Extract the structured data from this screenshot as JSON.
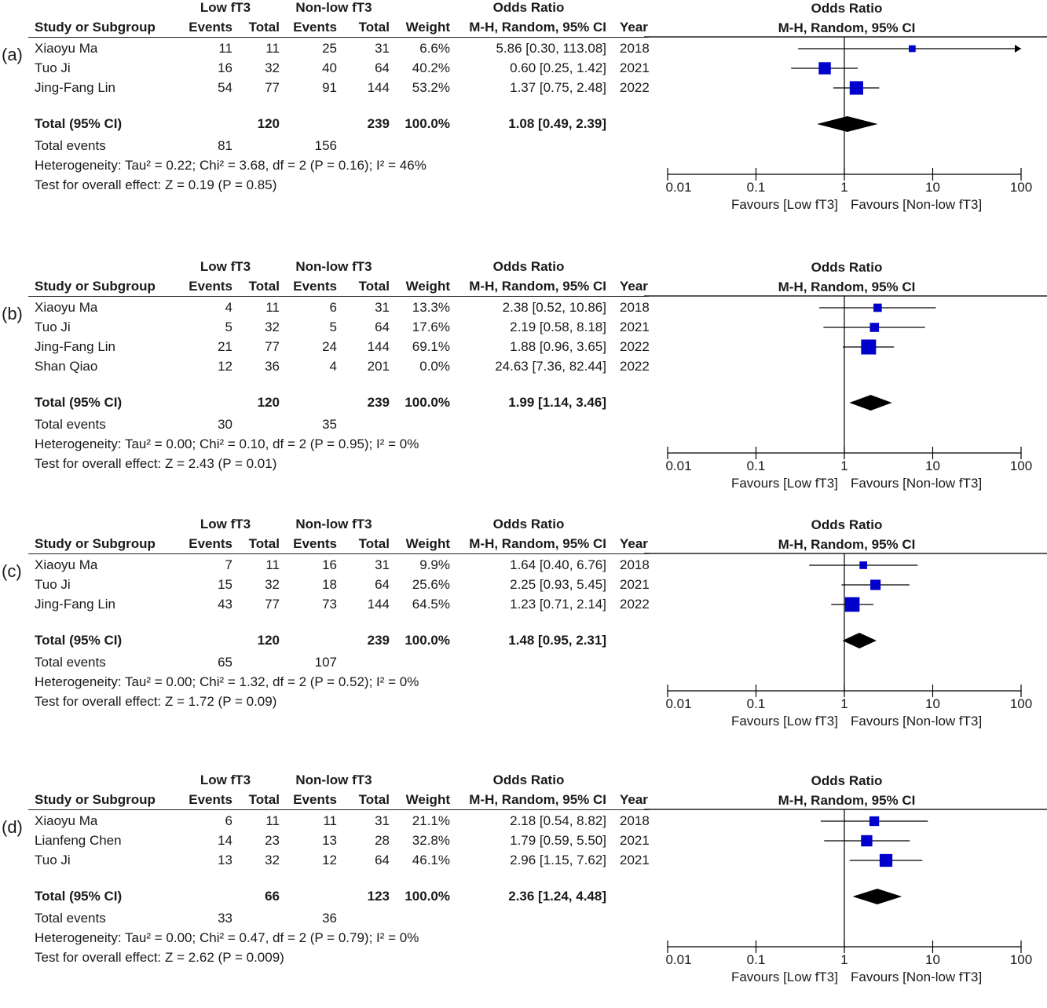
{
  "headers": {
    "study": "Study or Subgroup",
    "group1": "Low fT3",
    "group2": "Non-low fT3",
    "events": "Events",
    "total": "Total",
    "weight": "Weight",
    "or_title": "Odds Ratio",
    "or_sub": "M-H, Random, 95% CI",
    "year": "Year",
    "plot_title": "Odds Ratio",
    "plot_sub": "M-H, Random, 95% CI"
  },
  "axis": {
    "ticks": [
      "0.01",
      "0.1",
      "1",
      "10",
      "100"
    ],
    "favours_left": "Favours [Low fT3]",
    "favours_right": "Favours [Non-low fT3]"
  },
  "colors": {
    "study_marker": "#0000cc",
    "diamond": "#000000",
    "line": "#000000"
  },
  "chart_data": [
    {
      "type": "forest",
      "panel_label": "(a)",
      "scale": "log",
      "xlim": [
        0.01,
        100
      ],
      "studies": [
        {
          "name": "Xiaoyu Ma",
          "e1": "11",
          "t1": "11",
          "e2": "25",
          "t2": "31",
          "weight": "6.6%",
          "ci_text": "5.86 [0.30, 113.08]",
          "year": "2018",
          "or": 5.86,
          "lo": 0.3,
          "hi": 113.08
        },
        {
          "name": "Tuo Ji",
          "e1": "16",
          "t1": "32",
          "e2": "40",
          "t2": "64",
          "weight": "40.2%",
          "ci_text": "0.60 [0.25, 1.42]",
          "year": "2021",
          "or": 0.6,
          "lo": 0.25,
          "hi": 1.42
        },
        {
          "name": "Jing-Fang Lin",
          "e1": "54",
          "t1": "77",
          "e2": "91",
          "t2": "144",
          "weight": "53.2%",
          "ci_text": "1.37 [0.75, 2.48]",
          "year": "2022",
          "or": 1.37,
          "lo": 0.75,
          "hi": 2.48
        }
      ],
      "total": {
        "label": "Total (95% CI)",
        "t1": "120",
        "t2": "239",
        "weight": "100.0%",
        "ci_text": "1.08 [0.49, 2.39]",
        "or": 1.08,
        "lo": 0.49,
        "hi": 2.39
      },
      "events": {
        "label": "Total events",
        "e1": "81",
        "e2": "156"
      },
      "heterogeneity": "Heterogeneity: Tau² = 0.22; Chi² = 3.68, df = 2 (P = 0.16); I² = 46%",
      "overall": "Test for overall effect: Z = 0.19 (P = 0.85)"
    },
    {
      "type": "forest",
      "panel_label": "(b)",
      "scale": "log",
      "xlim": [
        0.01,
        100
      ],
      "studies": [
        {
          "name": "Xiaoyu Ma",
          "e1": "4",
          "t1": "11",
          "e2": "6",
          "t2": "31",
          "weight": "13.3%",
          "ci_text": "2.38 [0.52, 10.86]",
          "year": "2018",
          "or": 2.38,
          "lo": 0.52,
          "hi": 10.86
        },
        {
          "name": "Tuo Ji",
          "e1": "5",
          "t1": "32",
          "e2": "5",
          "t2": "64",
          "weight": "17.6%",
          "ci_text": "2.19 [0.58, 8.18]",
          "year": "2021",
          "or": 2.19,
          "lo": 0.58,
          "hi": 8.18
        },
        {
          "name": "Jing-Fang Lin",
          "e1": "21",
          "t1": "77",
          "e2": "24",
          "t2": "144",
          "weight": "69.1%",
          "ci_text": "1.88 [0.96, 3.65]",
          "year": "2022",
          "or": 1.88,
          "lo": 0.96,
          "hi": 3.65
        },
        {
          "name": "Shan Qiao",
          "e1": "12",
          "t1": "36",
          "e2": "4",
          "t2": "201",
          "weight": "0.0%",
          "ci_text": "24.63 [7.36, 82.44]",
          "year": "2022",
          "or": null,
          "lo": null,
          "hi": null
        }
      ],
      "total": {
        "label": "Total (95% CI)",
        "t1": "120",
        "t2": "239",
        "weight": "100.0%",
        "ci_text": "1.99 [1.14, 3.46]",
        "or": 1.99,
        "lo": 1.14,
        "hi": 3.46
      },
      "events": {
        "label": "Total events",
        "e1": "30",
        "e2": "35"
      },
      "heterogeneity": "Heterogeneity: Tau² = 0.00; Chi² = 0.10, df = 2 (P = 0.95); I² = 0%",
      "overall": "Test for overall effect: Z = 2.43 (P = 0.01)"
    },
    {
      "type": "forest",
      "panel_label": "(c)",
      "scale": "log",
      "xlim": [
        0.01,
        100
      ],
      "studies": [
        {
          "name": "Xiaoyu Ma",
          "e1": "7",
          "t1": "11",
          "e2": "16",
          "t2": "31",
          "weight": "9.9%",
          "ci_text": "1.64 [0.40, 6.76]",
          "year": "2018",
          "or": 1.64,
          "lo": 0.4,
          "hi": 6.76
        },
        {
          "name": "Tuo Ji",
          "e1": "15",
          "t1": "32",
          "e2": "18",
          "t2": "64",
          "weight": "25.6%",
          "ci_text": "2.25 [0.93, 5.45]",
          "year": "2021",
          "or": 2.25,
          "lo": 0.93,
          "hi": 5.45
        },
        {
          "name": "Jing-Fang Lin",
          "e1": "43",
          "t1": "77",
          "e2": "73",
          "t2": "144",
          "weight": "64.5%",
          "ci_text": "1.23 [0.71, 2.14]",
          "year": "2022",
          "or": 1.23,
          "lo": 0.71,
          "hi": 2.14
        }
      ],
      "total": {
        "label": "Total (95% CI)",
        "t1": "120",
        "t2": "239",
        "weight": "100.0%",
        "ci_text": "1.48 [0.95, 2.31]",
        "or": 1.48,
        "lo": 0.95,
        "hi": 2.31
      },
      "events": {
        "label": "Total events",
        "e1": "65",
        "e2": "107"
      },
      "heterogeneity": "Heterogeneity: Tau² = 0.00; Chi² = 1.32, df = 2 (P = 0.52); I² = 0%",
      "overall": "Test for overall effect: Z = 1.72 (P = 0.09)"
    },
    {
      "type": "forest",
      "panel_label": "(d)",
      "scale": "log",
      "xlim": [
        0.01,
        100
      ],
      "studies": [
        {
          "name": "Xiaoyu Ma",
          "e1": "6",
          "t1": "11",
          "e2": "11",
          "t2": "31",
          "weight": "21.1%",
          "ci_text": "2.18 [0.54, 8.82]",
          "year": "2018",
          "or": 2.18,
          "lo": 0.54,
          "hi": 8.82
        },
        {
          "name": "Lianfeng Chen",
          "e1": "14",
          "t1": "23",
          "e2": "13",
          "t2": "28",
          "weight": "32.8%",
          "ci_text": "1.79 [0.59, 5.50]",
          "year": "2021",
          "or": 1.79,
          "lo": 0.59,
          "hi": 5.5
        },
        {
          "name": "Tuo Ji",
          "e1": "13",
          "t1": "32",
          "e2": "12",
          "t2": "64",
          "weight": "46.1%",
          "ci_text": "2.96 [1.15, 7.62]",
          "year": "2021",
          "or": 2.96,
          "lo": 1.15,
          "hi": 7.62
        }
      ],
      "total": {
        "label": "Total (95% CI)",
        "t1": "66",
        "t2": "123",
        "weight": "100.0%",
        "ci_text": "2.36 [1.24, 4.48]",
        "or": 2.36,
        "lo": 1.24,
        "hi": 4.48
      },
      "events": {
        "label": "Total events",
        "e1": "33",
        "e2": "36"
      },
      "heterogeneity": "Heterogeneity: Tau² = 0.00; Chi² = 0.47, df = 2 (P = 0.79); I² = 0%",
      "overall": "Test for overall effect: Z = 2.62 (P = 0.009)"
    }
  ]
}
